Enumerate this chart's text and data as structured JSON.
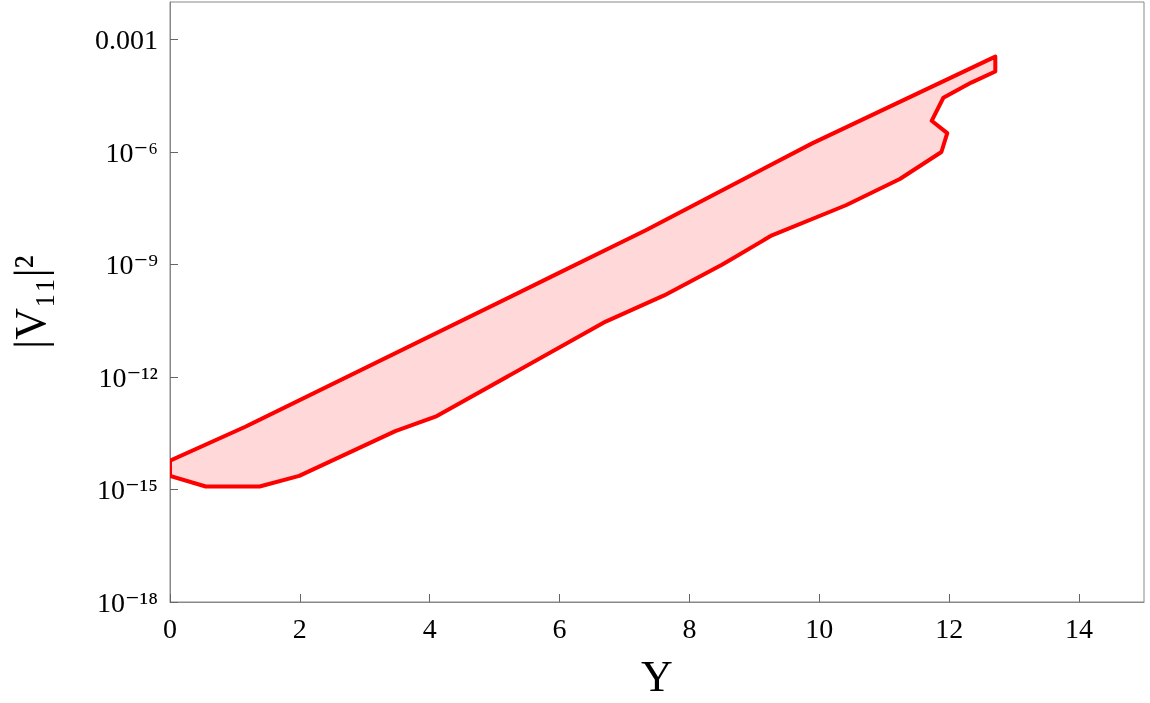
{
  "chart_data": {
    "type": "area",
    "xlabel": "Y",
    "ylabel": "|V₁₁|²",
    "log": "y",
    "xlim": [
      0,
      15
    ],
    "xticks": [
      0,
      2,
      4,
      6,
      8,
      10,
      12,
      14
    ],
    "ylim": [
      1e-18,
      0.01
    ],
    "yticks": [
      {
        "value": 1e-18,
        "label": "10⁻¹⁸"
      },
      {
        "value": 1e-15,
        "label": "10⁻¹⁵"
      },
      {
        "value": 1e-12,
        "label": "10⁻¹²"
      },
      {
        "value": 1e-09,
        "label": "10⁻⁹"
      },
      {
        "value": 1e-06,
        "label": "10⁻⁶"
      },
      {
        "value": 0.001,
        "label": "0.001"
      }
    ],
    "grid": false,
    "series": [
      {
        "color": "#ff0000",
        "x": [
          0,
          1.16,
          5.92,
          7.32,
          9.89,
          12.71,
          12.71,
          12.34,
          11.91,
          11.73,
          11.97,
          11.88,
          11.24,
          10.41,
          9.27,
          8.5,
          7.61,
          6.71,
          4.11,
          3.47,
          1.99,
          1.38,
          0.55,
          0
        ],
        "values": [
          5.9e-15,
          4.7e-14,
          5.2e-10,
          8.1e-09,
          1.7e-06,
          0.00035,
          0.00014,
          7.1e-05,
          2.8e-05,
          6.8e-06,
          3.2e-06,
          1e-06,
          1.9e-07,
          3.8e-08,
          6e-09,
          9.8e-10,
          1.5e-10,
          3e-11,
          9.1e-14,
          3.6e-14,
          2.3e-15,
          1.2e-15,
          1.2e-15,
          2.3e-15
        ]
      }
    ]
  }
}
